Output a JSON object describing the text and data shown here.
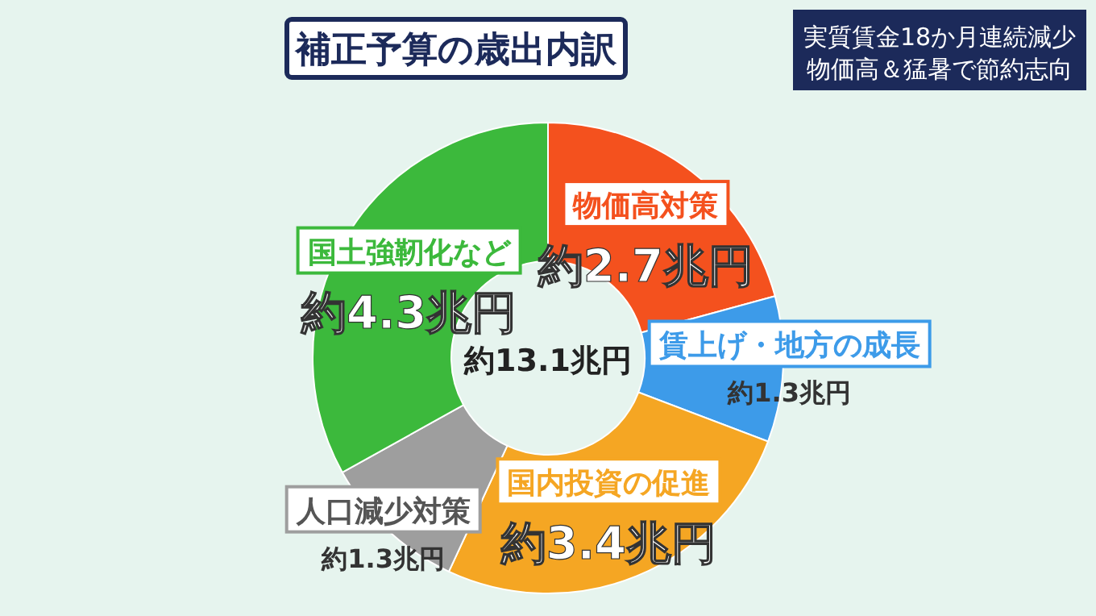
{
  "chart_data": {
    "type": "donut",
    "title": "補正予算の歳出内訳",
    "categories": [
      "物価高対策",
      "賃上げ・地方の成長",
      "国内投資の促進",
      "人口減少対策",
      "国土強靭化など"
    ],
    "values": [
      2.7,
      1.3,
      3.4,
      1.3,
      4.3
    ],
    "value_labels": [
      "約2.7兆円",
      "約1.3兆円",
      "約3.4兆円",
      "約1.3兆円",
      "約4.3兆円"
    ],
    "colors": [
      "#f4511e",
      "#3d9be9",
      "#f5a623",
      "#9e9e9e",
      "#3cb93c"
    ],
    "annotations": [
      "約13.1兆円",
      "実質賃金18か月連続減少",
      "物価高＆猛暑で節約志向"
    ]
  }
}
